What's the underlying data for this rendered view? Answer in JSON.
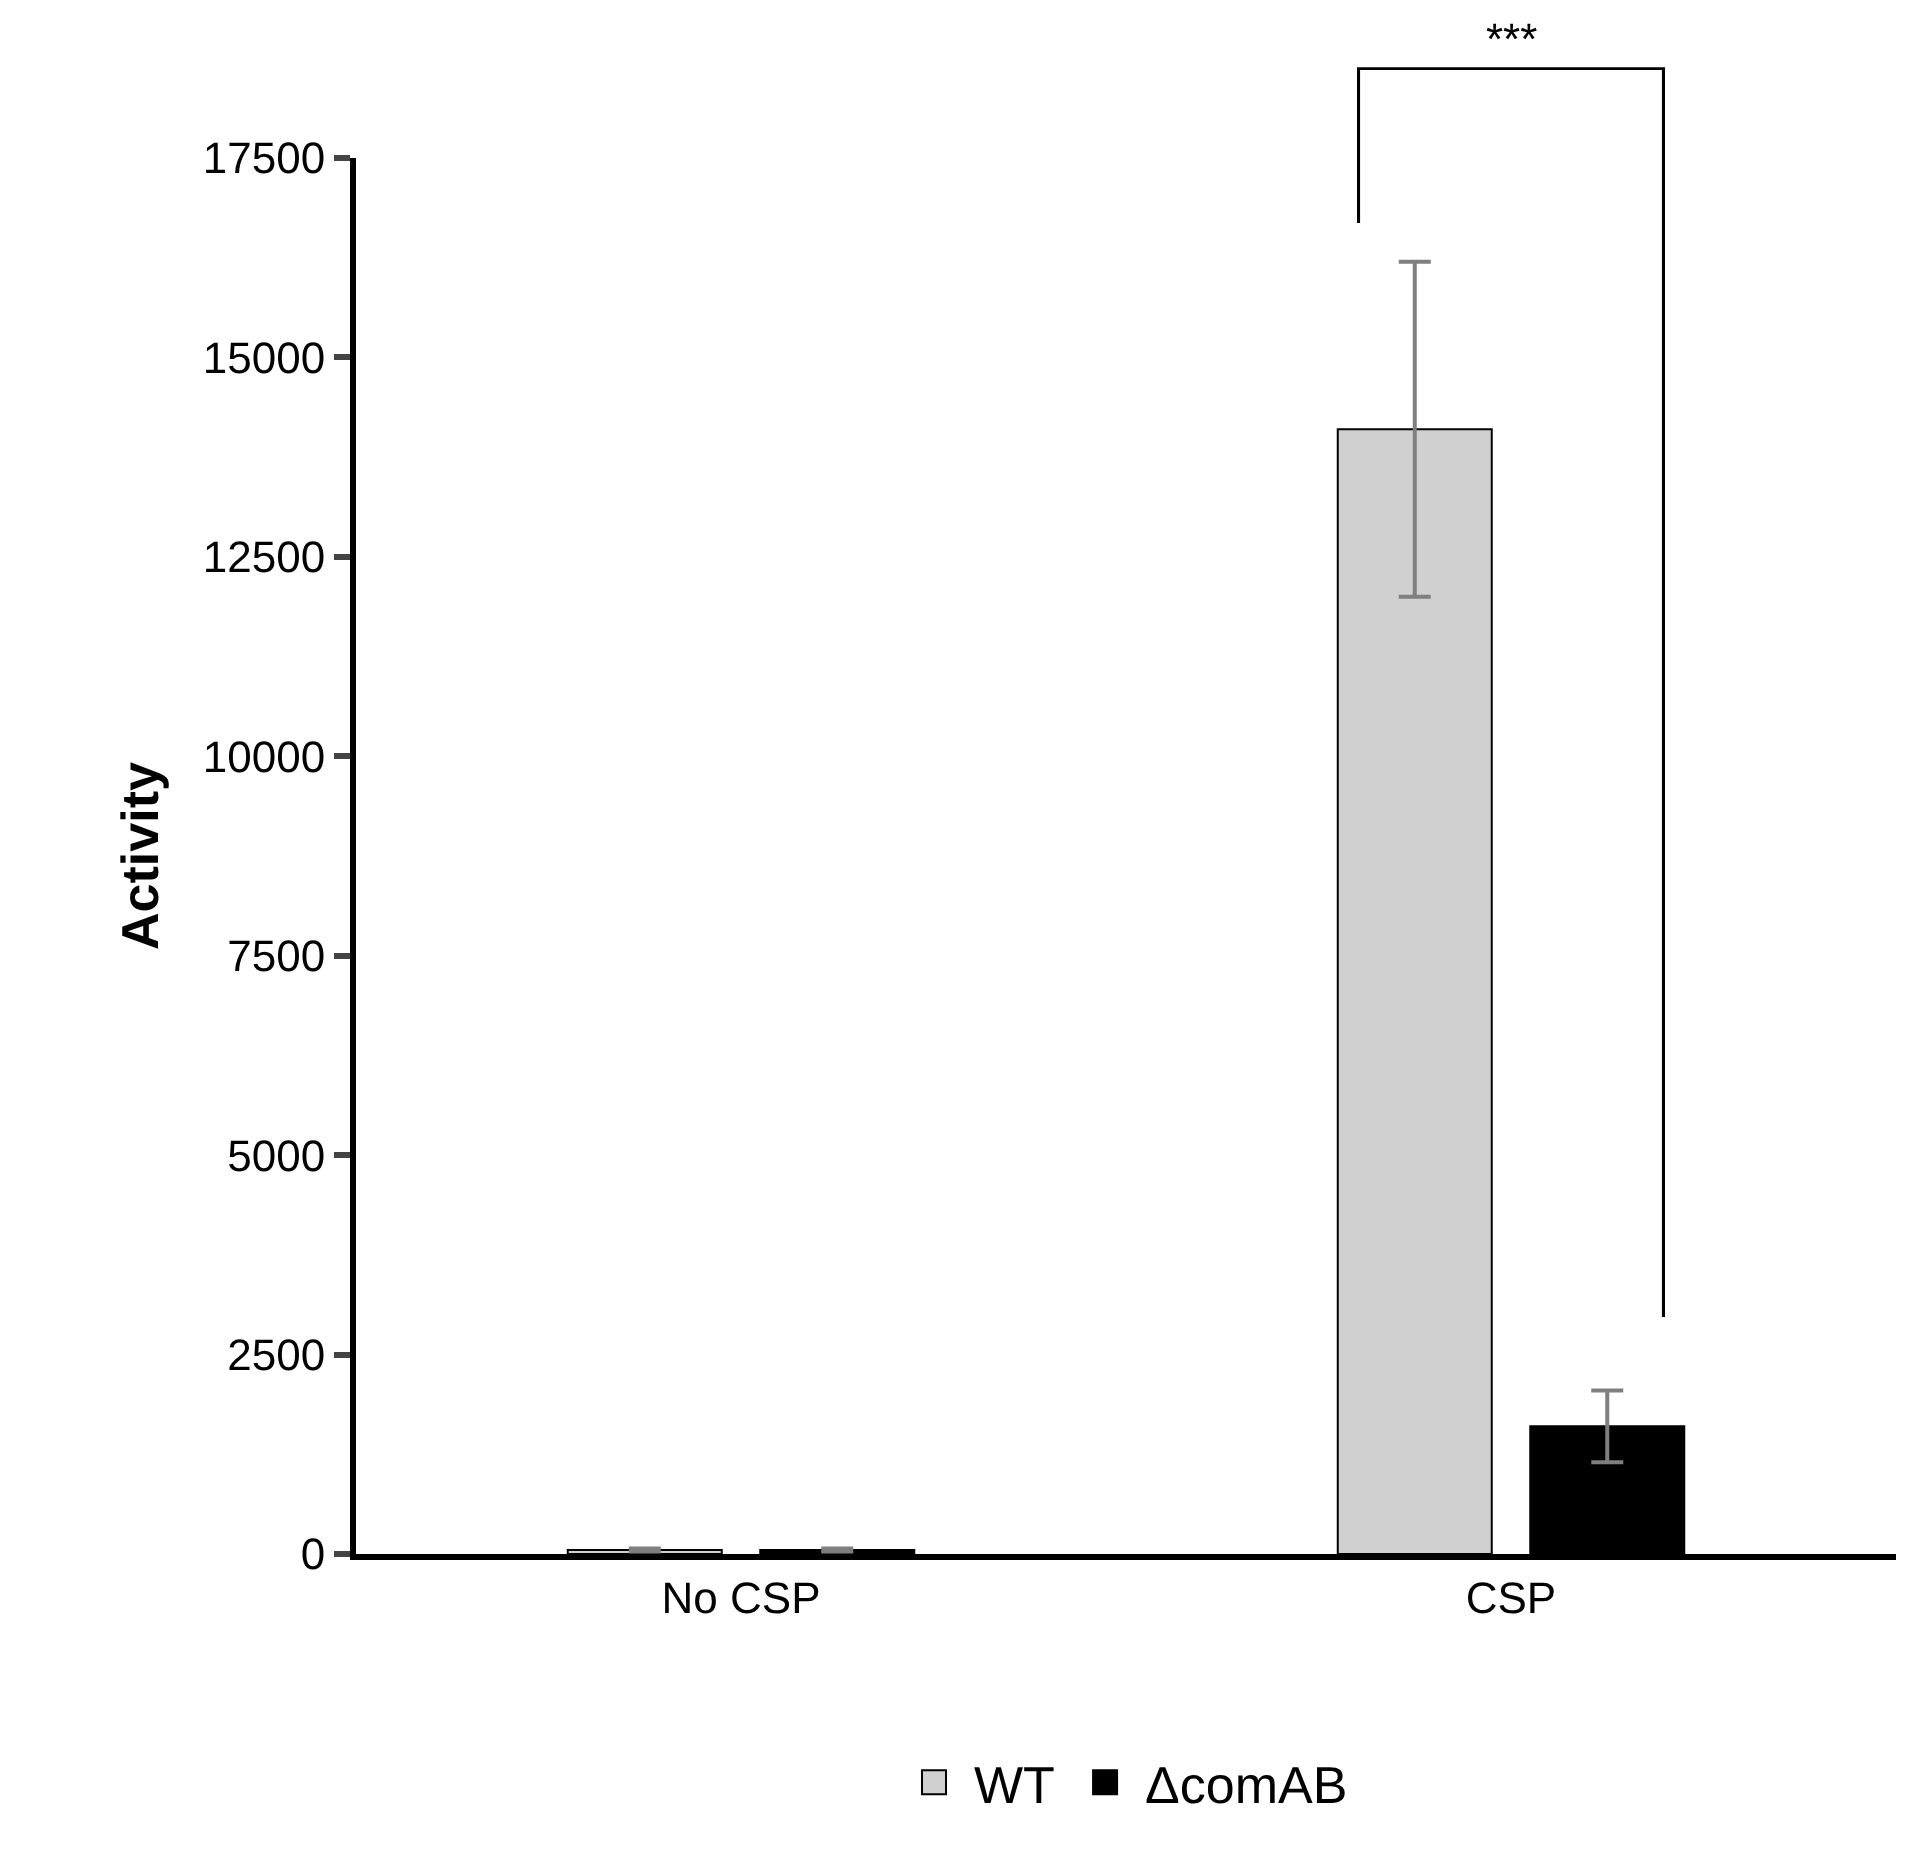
{
  "chart_data": {
    "type": "bar",
    "ylabel": "Activity",
    "categories": [
      "No CSP",
      "CSP"
    ],
    "series": [
      {
        "name": "WT",
        "color": "#d0d0d0",
        "values": [
          50,
          14100
        ],
        "errors": [
          20,
          2100
        ]
      },
      {
        "name": "ΔcomAB",
        "color": "#000000",
        "values": [
          50,
          1600
        ],
        "errors": [
          20,
          450
        ]
      }
    ],
    "ylim": [
      0,
      17500
    ],
    "yticks": [
      0,
      2500,
      5000,
      7500,
      10000,
      12500,
      15000,
      17500
    ],
    "grid": false,
    "legend": "bottom",
    "annotations": [
      "***"
    ]
  }
}
